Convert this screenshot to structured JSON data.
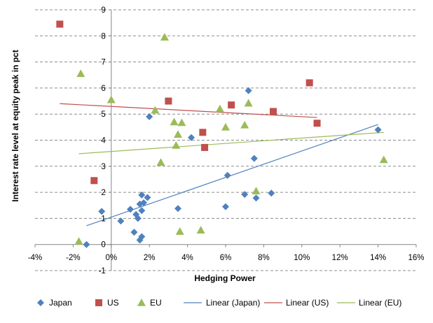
{
  "chart_data": {
    "type": "scatter",
    "xlabel": "Hedging Power",
    "ylabel": "Interest rate level at equity peak in pct",
    "xlim": [
      -0.04,
      0.16
    ],
    "ylim": [
      -1,
      9
    ],
    "x_ticks": [
      -0.04,
      -0.02,
      0,
      0.02,
      0.04,
      0.06,
      0.08,
      0.1,
      0.12,
      0.14,
      0.16
    ],
    "x_tick_labels": [
      "-4%",
      "-2%",
      "0%",
      "2%",
      "4%",
      "6%",
      "8%",
      "10%",
      "12%",
      "14%",
      "16%"
    ],
    "y_ticks": [
      -1,
      0,
      1,
      2,
      3,
      4,
      5,
      6,
      7,
      8,
      9
    ],
    "y_tick_labels": [
      "-1",
      "0",
      "1",
      "2",
      "3",
      "4",
      "5",
      "6",
      "7",
      "8",
      "9"
    ],
    "grid": "horizontal dashed",
    "legend_position": "bottom",
    "series": [
      {
        "name": "Japan",
        "marker": "diamond",
        "color": "#4F81BD",
        "points": [
          [
            -0.013,
            0.0
          ],
          [
            -0.005,
            1.27
          ],
          [
            0.005,
            0.9
          ],
          [
            0.01,
            1.35
          ],
          [
            0.012,
            0.47
          ],
          [
            0.013,
            1.15
          ],
          [
            0.014,
            1.0
          ],
          [
            0.015,
            1.55
          ],
          [
            0.015,
            0.17
          ],
          [
            0.016,
            1.3
          ],
          [
            0.016,
            0.3
          ],
          [
            0.016,
            1.9
          ],
          [
            0.017,
            1.6
          ],
          [
            0.019,
            1.8
          ],
          [
            0.02,
            4.9
          ],
          [
            0.035,
            1.38
          ],
          [
            0.042,
            4.1
          ],
          [
            0.06,
            1.45
          ],
          [
            0.061,
            2.65
          ],
          [
            0.07,
            1.92
          ],
          [
            0.072,
            5.9
          ],
          [
            0.075,
            3.3
          ],
          [
            0.076,
            1.78
          ],
          [
            0.084,
            1.97
          ],
          [
            0.14,
            4.4
          ]
        ]
      },
      {
        "name": "US",
        "marker": "square",
        "color": "#C0504D",
        "points": [
          [
            -0.027,
            8.45
          ],
          [
            -0.009,
            2.45
          ],
          [
            0.03,
            5.5
          ],
          [
            0.048,
            4.3
          ],
          [
            0.049,
            3.72
          ],
          [
            0.063,
            5.35
          ],
          [
            0.085,
            5.1
          ],
          [
            0.104,
            6.2
          ],
          [
            0.108,
            4.65
          ]
        ]
      },
      {
        "name": "EU",
        "marker": "triangle",
        "color": "#9BBB59",
        "points": [
          [
            -0.017,
            0.12
          ],
          [
            -0.016,
            6.55
          ],
          [
            0.0,
            5.55
          ],
          [
            0.023,
            5.15
          ],
          [
            0.026,
            3.15
          ],
          [
            0.028,
            7.95
          ],
          [
            0.033,
            4.7
          ],
          [
            0.034,
            3.8
          ],
          [
            0.035,
            4.22
          ],
          [
            0.036,
            0.5
          ],
          [
            0.037,
            4.67
          ],
          [
            0.047,
            0.55
          ],
          [
            0.057,
            5.2
          ],
          [
            0.06,
            4.5
          ],
          [
            0.07,
            4.58
          ],
          [
            0.072,
            5.42
          ],
          [
            0.076,
            2.05
          ],
          [
            0.143,
            3.25
          ]
        ]
      }
    ],
    "trendlines": [
      {
        "name": "Linear (Japan)",
        "color": "#4F81BD",
        "x": [
          -0.013,
          0.14
        ],
        "y": [
          0.72,
          4.6
        ]
      },
      {
        "name": "Linear (US)",
        "color": "#C0504D",
        "x": [
          -0.027,
          0.108
        ],
        "y": [
          5.4,
          4.87
        ]
      },
      {
        "name": "Linear (EU)",
        "color": "#9BBB59",
        "x": [
          -0.017,
          0.143
        ],
        "y": [
          3.48,
          4.3
        ]
      }
    ]
  }
}
